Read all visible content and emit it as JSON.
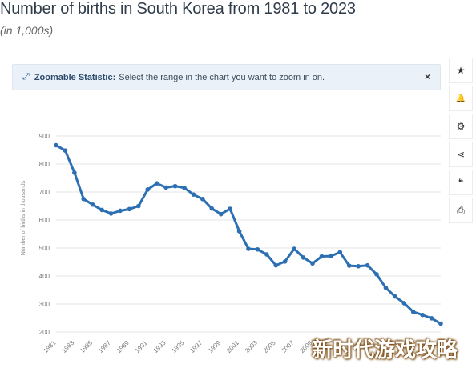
{
  "header": {
    "title": "Number of births in South Korea from 1981 to 2023",
    "subtitle": "(in 1,000s)"
  },
  "zoom_banner": {
    "strong": "Zoomable Statistic:",
    "text": "Select the range in the chart you want to zoom in on.",
    "close": "×"
  },
  "toolbar": [
    {
      "icon": "star-icon",
      "glyph": "★"
    },
    {
      "icon": "bell-icon",
      "glyph": "🔔"
    },
    {
      "icon": "gear-icon",
      "glyph": "⚙"
    },
    {
      "icon": "share-icon",
      "glyph": "⋖"
    },
    {
      "icon": "quote-icon",
      "glyph": "❝"
    },
    {
      "icon": "print-icon",
      "glyph": "⎙"
    }
  ],
  "watermark": "新时代游戏攻略",
  "colors": {
    "line": "#2c6fb3",
    "grid": "#e6e6e6",
    "banner_bg": "#eaf1f8"
  },
  "chart_data": {
    "type": "line",
    "ylabel": "Number of births in thousands",
    "xlabel": "",
    "ylim": [
      200,
      900
    ],
    "yticks": [
      900,
      800,
      700,
      600,
      500,
      400,
      300,
      200
    ],
    "xtick_labels": [
      "1981",
      "1983",
      "1985",
      "1987",
      "1989",
      "1991",
      "1993",
      "1995",
      "1997",
      "1999",
      "2001",
      "2003",
      "2005",
      "2007",
      "2009"
    ],
    "grid": true,
    "x": [
      1981,
      1982,
      1983,
      1984,
      1985,
      1986,
      1987,
      1988,
      1989,
      1990,
      1991,
      1992,
      1993,
      1994,
      1995,
      1996,
      1997,
      1998,
      1999,
      2000,
      2001,
      2002,
      2003,
      2004,
      2005,
      2006,
      2007,
      2008,
      2009,
      2010,
      2011,
      2012,
      2013,
      2014,
      2015,
      2016,
      2017,
      2018,
      2019,
      2020,
      2021,
      2022,
      2023
    ],
    "values": [
      867,
      848,
      769,
      675,
      655,
      636,
      623,
      633,
      639,
      650,
      709,
      731,
      716,
      721,
      715,
      691,
      675,
      641,
      621,
      640,
      560,
      497,
      495,
      477,
      438,
      452,
      497,
      466,
      445,
      470,
      471,
      485,
      437,
      435,
      438,
      406,
      358,
      327,
      303,
      272,
      261,
      249,
      230
    ]
  }
}
